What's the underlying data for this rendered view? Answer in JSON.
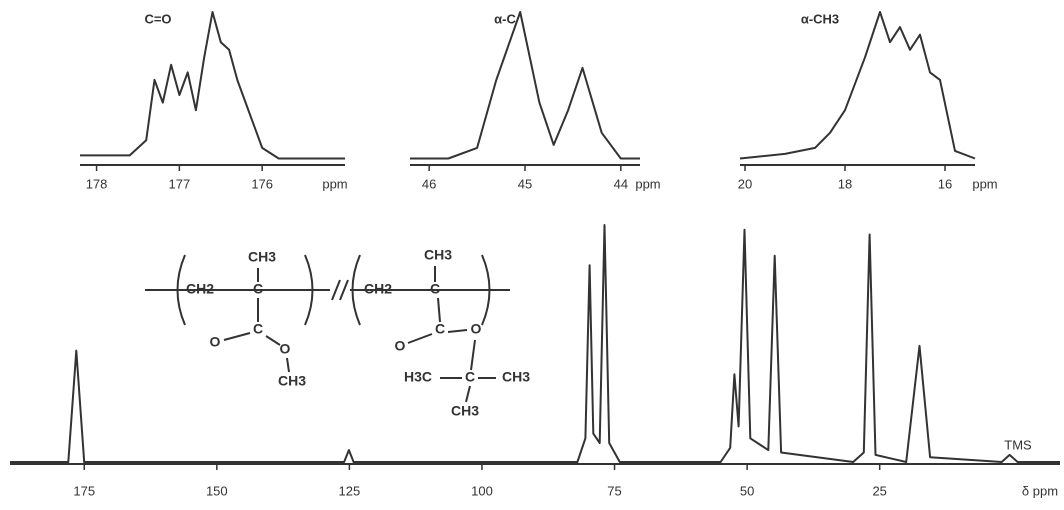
{
  "chart_data": [
    {
      "type": "line",
      "x_label": "δ ppm",
      "annotation": "TMS",
      "color": "#333333",
      "xlim": [
        189,
        -9
      ],
      "ylim": [
        0,
        100
      ],
      "xticks": [
        175,
        150,
        125,
        100,
        75,
        50,
        25
      ],
      "x": [
        189,
        178,
        176.5,
        175,
        126,
        125.1,
        124.2,
        82,
        80.5,
        79.7,
        79,
        77.8,
        76.9,
        76,
        74,
        55,
        53.2,
        52.4,
        51.6,
        50.5,
        49.4,
        46,
        44.8,
        43.6,
        30,
        28,
        26.9,
        25.8,
        20,
        17.5,
        15.5,
        2,
        0.5,
        -1,
        -9
      ],
      "values": [
        0,
        0,
        47,
        0,
        0,
        5,
        0,
        0,
        10,
        83,
        12,
        8,
        100,
        8,
        0,
        0,
        6,
        37,
        15,
        98,
        10,
        5,
        87,
        4,
        0,
        4,
        96,
        3,
        0,
        49,
        2,
        0,
        3,
        0,
        0
      ]
    },
    {
      "type": "line",
      "title": "C=O",
      "x_label": "ppm",
      "color": "#333333",
      "xlim": [
        178.2,
        175
      ],
      "ylim": [
        0,
        100
      ],
      "xticks": [
        178,
        177,
        176
      ],
      "x": [
        178.2,
        177.6,
        177.4,
        177.3,
        177.2,
        177.1,
        177.0,
        176.9,
        176.8,
        176.7,
        176.6,
        176.5,
        176.4,
        176.3,
        176.2,
        176.0,
        175.8,
        175.5,
        175
      ],
      "values": [
        5,
        5,
        15,
        55,
        40,
        65,
        45,
        60,
        35,
        70,
        100,
        80,
        75,
        55,
        40,
        10,
        3,
        3,
        3
      ]
    },
    {
      "type": "line",
      "title": "α-C",
      "x_label": "ppm",
      "color": "#333333",
      "xlim": [
        46.2,
        43.8
      ],
      "ylim": [
        0,
        100
      ],
      "xticks": [
        46,
        45,
        44
      ],
      "x": [
        46.2,
        45.8,
        45.5,
        45.3,
        45.05,
        44.85,
        44.7,
        44.55,
        44.4,
        44.2,
        44.0,
        43.8
      ],
      "values": [
        3,
        3,
        10,
        55,
        100,
        40,
        12,
        35,
        63,
        20,
        3,
        3
      ]
    },
    {
      "type": "line",
      "title": "α-CH3",
      "x_label": "ppm",
      "color": "#333333",
      "xlim": [
        20.1,
        15.4
      ],
      "ylim": [
        0,
        100
      ],
      "xticks": [
        20,
        18,
        16
      ],
      "x": [
        20.1,
        19.2,
        18.6,
        18.3,
        18.0,
        17.6,
        17.3,
        17.1,
        16.9,
        16.7,
        16.5,
        16.3,
        16.1,
        15.8,
        15.4
      ],
      "values": [
        3,
        6,
        10,
        20,
        35,
        70,
        100,
        80,
        90,
        75,
        85,
        60,
        55,
        8,
        3
      ]
    }
  ],
  "structure": {
    "labels": [
      "CH2",
      "C",
      "CH3",
      "C",
      "O",
      "O",
      "CH3",
      "CH2",
      "C",
      "CH3",
      "C",
      "O",
      "O",
      "C",
      "H3C",
      "CH3",
      "CH3"
    ]
  }
}
